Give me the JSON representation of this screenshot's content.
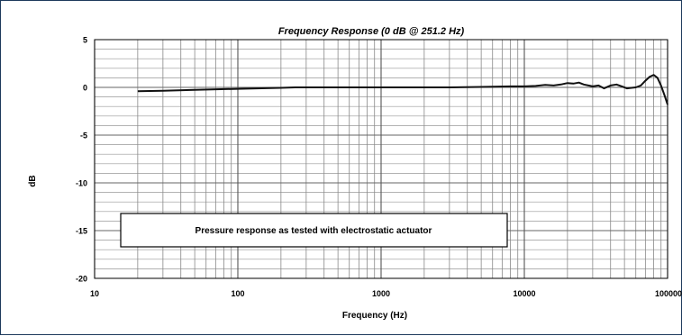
{
  "chart_data": {
    "type": "line",
    "title": "Frequency Response (0 dB @ 251.2 Hz)",
    "xlabel": "Frequency (Hz)",
    "ylabel": "dB",
    "x_scale": "log",
    "xlim": [
      10,
      100000
    ],
    "ylim": [
      -20,
      5
    ],
    "x_ticks": [
      10,
      100,
      1000,
      10000,
      100000
    ],
    "x_tick_labels": [
      "10",
      "100",
      "1000",
      "10000",
      "100000"
    ],
    "y_ticks": [
      5,
      0,
      -5,
      -10,
      -15,
      -20
    ],
    "y_tick_labels": [
      "5",
      "0",
      "-5",
      "-10",
      "-15",
      "-20"
    ],
    "grid": true,
    "annotation": "Pressure response as tested with electrostatic actuator",
    "series": [
      {
        "x": [
          20,
          30,
          50,
          100,
          200,
          251.2,
          500,
          1000,
          2000,
          3000,
          5000,
          8000,
          10000,
          12000,
          14000,
          16000,
          18000,
          20000,
          22000,
          24000,
          26000,
          28000,
          30000,
          33000,
          36000,
          40000,
          44000,
          48000,
          52000,
          56000,
          60000,
          65000,
          70000,
          75000,
          80000,
          85000,
          90000,
          95000,
          100000
        ],
        "values": [
          -0.4,
          -0.35,
          -0.25,
          -0.15,
          -0.05,
          0,
          0,
          0,
          0,
          0,
          0.05,
          0.1,
          0.1,
          0.15,
          0.25,
          0.2,
          0.3,
          0.45,
          0.4,
          0.5,
          0.3,
          0.2,
          0.1,
          0.2,
          -0.1,
          0.2,
          0.3,
          0.1,
          -0.1,
          -0.05,
          0.0,
          0.2,
          0.7,
          1.1,
          1.3,
          1.0,
          0.2,
          -0.8,
          -1.8
        ],
        "color": "#111111"
      }
    ]
  }
}
